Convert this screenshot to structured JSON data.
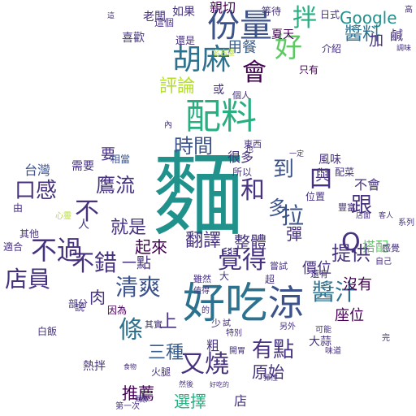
{
  "palette": {
    "background": "#ffffff",
    "purple": "#46327e",
    "indigo": "#3b528b",
    "blue": "#365c8d",
    "steel": "#2c728e",
    "teal": "#21918c",
    "green": "#28ae80",
    "lime": "#5ec962",
    "yellow": "#b5de2b",
    "dark": "#440154"
  },
  "words": [
    "麵",
    "好吃",
    "涼",
    "配料",
    "份量",
    "拌",
    "胡麻",
    "會",
    "好",
    "Google",
    "親切",
    "醬料",
    "用餐",
    "夏天",
    "評論",
    "時間",
    "清爽",
    "覺得",
    "鷹流",
    "口感",
    "不過",
    "不錯",
    "店員",
    "提供",
    "跟",
    "醬汁",
    "有點",
    "又燒",
    "條",
    "三種",
    "原始",
    "就是",
    "翻譯",
    "整體",
    "到",
    "和",
    "一點",
    "起來",
    "拉",
    "多",
    "選擇",
    "推薦",
    "座位",
    "沒有",
    "價位",
    "搭配",
    "台灣",
    "需要",
    "要",
    "很多",
    "相當",
    "喜歡",
    "老闆",
    "如果",
    "等待",
    "加",
    "鹹",
    "日式",
    "或",
    "個人",
    "這個",
    "還是",
    "名古屋",
    "只有",
    "介紹",
    "風味",
    "不會",
    "與",
    "位置",
    "所以",
    "東西",
    "大蒜",
    "火腿",
    "熱拌",
    "白飯",
    "部分",
    "其實",
    "特別",
    "雖然",
    "超",
    "值得",
    "另外",
    "完",
    "因為",
    "其他",
    "心靈",
    "適合",
    "自己",
    "感覺",
    "口",
    "上",
    "Q",
    "彈",
    "不",
    "店",
    "肉",
    "粗",
    "少",
    "說",
    "一些",
    "第一次",
    "然後",
    "類似",
    "食物",
    "彈性",
    "好吃的",
    "可能",
    "試",
    "嘗試",
    "還有",
    "配菜",
    "豐富",
    "一定",
    "客人",
    "店面",
    "系列",
    "開胃",
    "調味",
    "味道",
    "大",
    "也",
    "高",
    "人",
    "這",
    "內",
    "由",
    "的"
  ]
}
